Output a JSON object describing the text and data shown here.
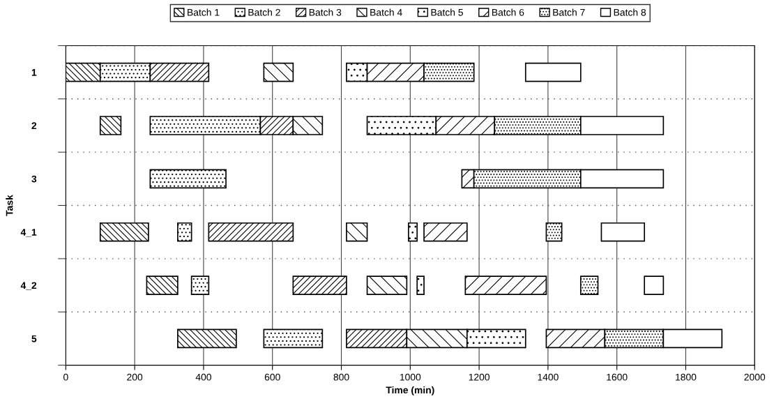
{
  "chart_data": {
    "type": "bar",
    "orientation": "horizontal",
    "xlabel": "Time (min)",
    "ylabel": "Task",
    "categories": [
      "1",
      "2",
      "3",
      "4_1",
      "4_2",
      "5"
    ],
    "xlim": [
      0,
      2000
    ],
    "xticks": [
      0,
      200,
      400,
      600,
      800,
      1000,
      1200,
      1400,
      1600,
      1800,
      2000
    ],
    "grid": true,
    "legend": "top",
    "series": [
      {
        "name": "Batch 1",
        "color": "#000000",
        "base": [
          0,
          100,
          null,
          100,
          235,
          325
        ],
        "values": [
          100,
          60,
          null,
          140,
          90,
          170
        ]
      },
      {
        "name": "Batch 2",
        "color": "#000000",
        "base": [
          100,
          245,
          245,
          325,
          365,
          575
        ],
        "values": [
          145,
          320,
          220,
          40,
          50,
          170
        ]
      },
      {
        "name": "Batch 3",
        "color": "#000000",
        "base": [
          245,
          565,
          null,
          415,
          660,
          815
        ],
        "values": [
          170,
          95,
          null,
          245,
          155,
          175
        ]
      },
      {
        "name": "Batch 4",
        "color": "#000000",
        "base": [
          575,
          660,
          null,
          815,
          875,
          990
        ],
        "values": [
          85,
          85,
          null,
          60,
          115,
          175
        ]
      },
      {
        "name": "Batch 5",
        "color": "#000000",
        "base": [
          815,
          875,
          null,
          995,
          1020,
          1165
        ],
        "values": [
          60,
          200,
          null,
          25,
          20,
          170
        ]
      },
      {
        "name": "Batch 6",
        "color": "#000000",
        "base": [
          875,
          1075,
          1150,
          1040,
          1160,
          1395
        ],
        "values": [
          165,
          170,
          35,
          125,
          235,
          170
        ]
      },
      {
        "name": "Batch 7",
        "color": "#000000",
        "base": [
          1040,
          1245,
          1185,
          1395,
          1495,
          1565
        ],
        "values": [
          145,
          250,
          310,
          45,
          50,
          170
        ]
      },
      {
        "name": "Batch 8",
        "color": "#000000",
        "base": [
          1335,
          1495,
          1495,
          1555,
          1680,
          1735
        ],
        "values": [
          160,
          240,
          240,
          125,
          55,
          170
        ]
      }
    ]
  }
}
